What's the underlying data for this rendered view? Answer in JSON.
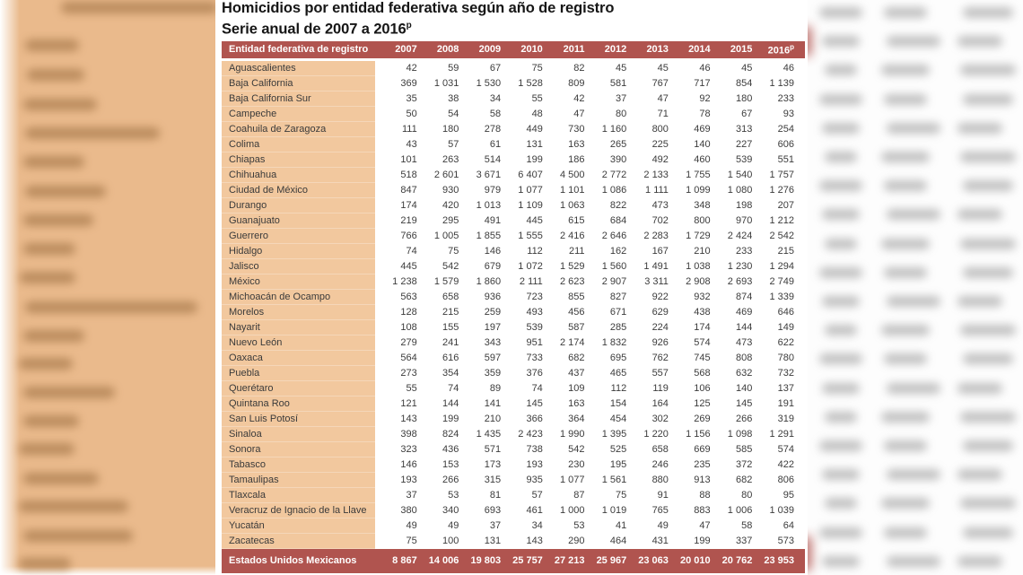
{
  "title": {
    "line1": "Homicidios por entidad federativa según año de registro",
    "line2": "Serie anual de 2007 a 2016",
    "line2_superscript": "p"
  },
  "table": {
    "entity_column_header": "Entidad federativa de registro",
    "year_headers": [
      "2007",
      "2008",
      "2009",
      "2010",
      "2011",
      "2012",
      "2013",
      "2014",
      "2015"
    ],
    "last_year_header": {
      "label": "2016",
      "superscript": "p"
    },
    "rows": [
      {
        "name": "Aguascalientes",
        "values": [
          "42",
          "59",
          "67",
          "75",
          "82",
          "45",
          "45",
          "46",
          "45",
          "46"
        ]
      },
      {
        "name": "Baja California",
        "values": [
          "369",
          "1 031",
          "1 530",
          "1 528",
          "809",
          "581",
          "767",
          "717",
          "854",
          "1 139"
        ]
      },
      {
        "name": "Baja California Sur",
        "values": [
          "35",
          "38",
          "34",
          "55",
          "42",
          "37",
          "47",
          "92",
          "180",
          "233"
        ]
      },
      {
        "name": "Campeche",
        "values": [
          "50",
          "54",
          "58",
          "48",
          "47",
          "80",
          "71",
          "78",
          "67",
          "93"
        ]
      },
      {
        "name": "Coahuila de Zaragoza",
        "values": [
          "111",
          "180",
          "278",
          "449",
          "730",
          "1 160",
          "800",
          "469",
          "313",
          "254"
        ]
      },
      {
        "name": "Colima",
        "values": [
          "43",
          "57",
          "61",
          "131",
          "163",
          "265",
          "225",
          "140",
          "227",
          "606"
        ]
      },
      {
        "name": "Chiapas",
        "values": [
          "101",
          "263",
          "514",
          "199",
          "186",
          "390",
          "492",
          "460",
          "539",
          "551"
        ]
      },
      {
        "name": "Chihuahua",
        "values": [
          "518",
          "2 601",
          "3 671",
          "6 407",
          "4 500",
          "2 772",
          "2 133",
          "1 755",
          "1 540",
          "1 757"
        ]
      },
      {
        "name": "Ciudad de México",
        "values": [
          "847",
          "930",
          "979",
          "1 077",
          "1 101",
          "1 086",
          "1 111",
          "1 099",
          "1 080",
          "1 276"
        ]
      },
      {
        "name": "Durango",
        "values": [
          "174",
          "420",
          "1 013",
          "1 109",
          "1 063",
          "822",
          "473",
          "348",
          "198",
          "207"
        ]
      },
      {
        "name": "Guanajuato",
        "values": [
          "219",
          "295",
          "491",
          "445",
          "615",
          "684",
          "702",
          "800",
          "970",
          "1 212"
        ]
      },
      {
        "name": "Guerrero",
        "values": [
          "766",
          "1 005",
          "1 855",
          "1 555",
          "2 416",
          "2 646",
          "2 283",
          "1 729",
          "2 424",
          "2 542"
        ]
      },
      {
        "name": "Hidalgo",
        "values": [
          "74",
          "75",
          "146",
          "112",
          "211",
          "162",
          "167",
          "210",
          "233",
          "215"
        ]
      },
      {
        "name": "Jalisco",
        "values": [
          "445",
          "542",
          "679",
          "1 072",
          "1 529",
          "1 560",
          "1 491",
          "1 038",
          "1 230",
          "1 294"
        ]
      },
      {
        "name": "México",
        "values": [
          "1 238",
          "1 579",
          "1 860",
          "2 111",
          "2 623",
          "2 907",
          "3 311",
          "2 908",
          "2 693",
          "2 749"
        ]
      },
      {
        "name": "Michoacán de Ocampo",
        "values": [
          "563",
          "658",
          "936",
          "723",
          "855",
          "827",
          "922",
          "932",
          "874",
          "1 339"
        ]
      },
      {
        "name": "Morelos",
        "values": [
          "128",
          "215",
          "259",
          "493",
          "456",
          "671",
          "629",
          "438",
          "469",
          "646"
        ]
      },
      {
        "name": "Nayarit",
        "values": [
          "108",
          "155",
          "197",
          "539",
          "587",
          "285",
          "224",
          "174",
          "144",
          "149"
        ]
      },
      {
        "name": "Nuevo León",
        "values": [
          "279",
          "241",
          "343",
          "951",
          "2 174",
          "1 832",
          "926",
          "574",
          "473",
          "622"
        ]
      },
      {
        "name": "Oaxaca",
        "values": [
          "564",
          "616",
          "597",
          "733",
          "682",
          "695",
          "762",
          "745",
          "808",
          "780"
        ]
      },
      {
        "name": "Puebla",
        "values": [
          "273",
          "354",
          "359",
          "376",
          "437",
          "465",
          "557",
          "568",
          "632",
          "732"
        ]
      },
      {
        "name": "Querétaro",
        "values": [
          "55",
          "74",
          "89",
          "74",
          "109",
          "112",
          "119",
          "106",
          "140",
          "137"
        ]
      },
      {
        "name": "Quintana Roo",
        "values": [
          "121",
          "144",
          "141",
          "145",
          "163",
          "154",
          "164",
          "125",
          "145",
          "191"
        ]
      },
      {
        "name": "San Luis Potosí",
        "values": [
          "143",
          "199",
          "210",
          "366",
          "364",
          "454",
          "302",
          "269",
          "266",
          "319"
        ]
      },
      {
        "name": "Sinaloa",
        "values": [
          "398",
          "824",
          "1 435",
          "2 423",
          "1 990",
          "1 395",
          "1 220",
          "1 156",
          "1 098",
          "1 291"
        ]
      },
      {
        "name": "Sonora",
        "values": [
          "323",
          "436",
          "571",
          "738",
          "542",
          "525",
          "658",
          "669",
          "585",
          "574"
        ]
      },
      {
        "name": "Tabasco",
        "values": [
          "146",
          "153",
          "173",
          "193",
          "230",
          "195",
          "246",
          "235",
          "372",
          "422"
        ]
      },
      {
        "name": "Tamaulipas",
        "values": [
          "193",
          "266",
          "315",
          "935",
          "1 077",
          "1 561",
          "880",
          "913",
          "682",
          "806"
        ]
      },
      {
        "name": "Tlaxcala",
        "values": [
          "37",
          "53",
          "81",
          "57",
          "87",
          "75",
          "91",
          "88",
          "80",
          "95"
        ]
      },
      {
        "name": "Veracruz de Ignacio de la Llave",
        "values": [
          "380",
          "340",
          "693",
          "461",
          "1 000",
          "1 019",
          "765",
          "883",
          "1 006",
          "1 039"
        ]
      },
      {
        "name": "Yucatán",
        "values": [
          "49",
          "49",
          "37",
          "34",
          "53",
          "41",
          "49",
          "47",
          "58",
          "64"
        ]
      },
      {
        "name": "Zacatecas",
        "values": [
          "75",
          "100",
          "131",
          "143",
          "290",
          "464",
          "431",
          "199",
          "337",
          "573"
        ]
      }
    ],
    "total_row": {
      "label": "Estados Unidos Mexicanos",
      "values": [
        "8 867",
        "14 006",
        "19 803",
        "25 757",
        "27 213",
        "25 967",
        "23 063",
        "20 010",
        "20 762",
        "23 953"
      ]
    }
  },
  "colors": {
    "header_bg": "#b0544f",
    "total_row_bg": "#b0544f",
    "entity_cell_bg": "#f2c89e",
    "blurred_left_bg": "#eaba8c",
    "title_text": "#161616",
    "cell_text": "#3c3c3c",
    "header_text": "#ffffff"
  }
}
